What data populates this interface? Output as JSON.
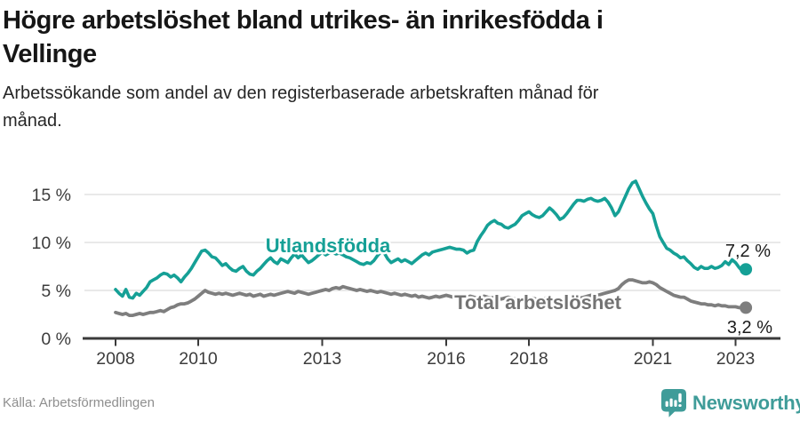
{
  "header": {
    "title_lines": [
      "Högre arbetslöshet bland utrikes- än inrikesfödda i",
      "Vellinge"
    ],
    "subtitle_lines": [
      "Arbetssökande som andel av den registerbaserade arbetskraften månad för",
      "månad."
    ]
  },
  "footer": {
    "source": "Källa: Arbetsförmedlingen",
    "brand": "Newsworthy"
  },
  "colors": {
    "accent": "#15a096",
    "gray_series": "#7e7e7e",
    "gray_label": "#737373",
    "brand": "#3f9c99",
    "grid": "#dcdcdc",
    "axis": "#3a3a3a",
    "end_label_text": "#1b1b1b"
  },
  "chart_data": {
    "type": "line",
    "title": "Högre arbetslöshet bland utrikes- än inrikesfödda i Vellinge",
    "subtitle": "Arbetssökande som andel av den registerbaserade arbetskraften månad för månad.",
    "unit": "%",
    "x_start_year": 2008,
    "x_frequency": "monthly",
    "x_end_label": "2023-04",
    "grid": "horizontal",
    "legend_position": "inline-labels",
    "ylim": [
      0,
      17
    ],
    "x_axis": {
      "tick_years": [
        2008,
        2010,
        2013,
        2016,
        2018,
        2021,
        2023
      ],
      "tick_labels": [
        "2008",
        "2010",
        "2013",
        "2016",
        "2018",
        "2021",
        "2023"
      ]
    },
    "y_axis": {
      "ticks": [
        {
          "value": 0,
          "label": "0 %"
        },
        {
          "value": 5,
          "label": "5 %"
        },
        {
          "value": 10,
          "label": "10 %"
        },
        {
          "value": 15,
          "label": "15 %"
        }
      ]
    },
    "series": [
      {
        "name": "Utlandsfödda",
        "color": "#15a096",
        "end_value": 7.2,
        "end_label": "7,2 %",
        "values": [
          5.1,
          4.7,
          4.4,
          5.1,
          4.3,
          4.2,
          4.7,
          4.5,
          4.9,
          5.3,
          5.9,
          6.1,
          6.3,
          6.6,
          6.8,
          6.7,
          6.4,
          6.6,
          6.3,
          5.9,
          6.4,
          6.8,
          7.3,
          7.9,
          8.5,
          9.1,
          9.2,
          8.9,
          8.5,
          8.4,
          8.0,
          7.6,
          7.8,
          7.4,
          7.1,
          7.0,
          7.3,
          7.5,
          7.0,
          6.7,
          6.6,
          7.0,
          7.3,
          7.7,
          8.1,
          8.4,
          8.0,
          7.8,
          8.3,
          8.1,
          7.9,
          8.4,
          8.8,
          8.4,
          8.7,
          8.3,
          7.9,
          8.1,
          8.4,
          8.7,
          9.0,
          8.7,
          8.9,
          9.0,
          8.8,
          8.9,
          8.7,
          8.5,
          8.4,
          8.2,
          8.0,
          7.8,
          7.7,
          7.9,
          7.8,
          8.1,
          8.6,
          9.0,
          8.9,
          8.3,
          7.9,
          8.1,
          8.3,
          8.0,
          8.2,
          8.0,
          7.8,
          8.1,
          8.4,
          8.7,
          8.9,
          8.7,
          9.0,
          9.1,
          9.2,
          9.3,
          9.4,
          9.5,
          9.4,
          9.3,
          9.3,
          9.2,
          8.9,
          9.1,
          9.2,
          10.1,
          10.7,
          11.2,
          11.8,
          12.1,
          12.3,
          12.0,
          11.9,
          11.6,
          11.5,
          11.7,
          11.9,
          12.3,
          12.8,
          13.0,
          13.2,
          12.9,
          12.7,
          12.6,
          12.8,
          13.2,
          13.6,
          13.3,
          12.9,
          12.4,
          12.6,
          13.0,
          13.5,
          14.0,
          14.4,
          14.4,
          14.3,
          14.5,
          14.6,
          14.4,
          14.3,
          14.4,
          14.6,
          14.2,
          13.6,
          12.8,
          13.2,
          14.0,
          14.8,
          15.6,
          16.2,
          16.4,
          15.6,
          14.8,
          14.1,
          13.5,
          13.0,
          11.7,
          10.6,
          10.0,
          9.4,
          9.2,
          8.9,
          8.7,
          8.4,
          8.5,
          8.1,
          7.8,
          7.4,
          7.2,
          7.5,
          7.3,
          7.3,
          7.5,
          7.3,
          7.4,
          7.6,
          8.0,
          7.7,
          8.2,
          7.9,
          7.4,
          7.0,
          7.2
        ]
      },
      {
        "name": "Total arbetslöshet",
        "color": "#7e7e7e",
        "end_value": 3.2,
        "end_label": "3,2 %",
        "values": [
          2.7,
          2.6,
          2.5,
          2.6,
          2.4,
          2.4,
          2.5,
          2.6,
          2.5,
          2.6,
          2.7,
          2.7,
          2.8,
          2.9,
          2.8,
          3.0,
          3.2,
          3.3,
          3.5,
          3.6,
          3.6,
          3.7,
          3.9,
          4.1,
          4.4,
          4.7,
          5.0,
          4.8,
          4.7,
          4.6,
          4.7,
          4.6,
          4.7,
          4.6,
          4.5,
          4.6,
          4.7,
          4.6,
          4.5,
          4.6,
          4.4,
          4.5,
          4.6,
          4.4,
          4.5,
          4.6,
          4.5,
          4.6,
          4.7,
          4.8,
          4.9,
          4.8,
          4.7,
          4.9,
          4.8,
          4.7,
          4.6,
          4.7,
          4.8,
          4.9,
          5.0,
          5.1,
          5.0,
          5.2,
          5.3,
          5.2,
          5.4,
          5.3,
          5.2,
          5.1,
          5.0,
          5.1,
          5.0,
          4.9,
          5.0,
          4.9,
          4.8,
          4.9,
          4.8,
          4.7,
          4.6,
          4.7,
          4.6,
          4.5,
          4.6,
          4.5,
          4.4,
          4.5,
          4.3,
          4.4,
          4.3,
          4.2,
          4.3,
          4.4,
          4.3,
          4.4,
          4.5,
          4.4,
          4.3,
          4.4,
          4.5,
          4.4,
          4.3,
          4.4,
          4.3,
          4.2,
          4.3,
          4.4,
          4.3,
          4.2,
          4.3,
          4.2,
          4.1,
          4.2,
          4.3,
          4.2,
          4.1,
          4.2,
          4.1,
          4.2,
          4.1,
          4.2,
          4.1,
          4.0,
          4.1,
          4.2,
          4.1,
          4.0,
          4.1,
          4.0,
          4.1,
          4.2,
          4.1,
          4.2,
          4.3,
          4.2,
          4.3,
          4.4,
          4.5,
          4.4,
          4.5,
          4.6,
          4.7,
          4.8,
          4.9,
          5.0,
          5.2,
          5.6,
          5.9,
          6.1,
          6.1,
          6.0,
          5.9,
          5.8,
          5.8,
          5.9,
          5.8,
          5.6,
          5.3,
          5.1,
          4.9,
          4.7,
          4.5,
          4.4,
          4.3,
          4.3,
          4.1,
          3.9,
          3.8,
          3.7,
          3.6,
          3.6,
          3.5,
          3.5,
          3.4,
          3.5,
          3.4,
          3.4,
          3.3,
          3.3,
          3.3,
          3.2,
          3.2,
          3.2
        ]
      }
    ]
  }
}
